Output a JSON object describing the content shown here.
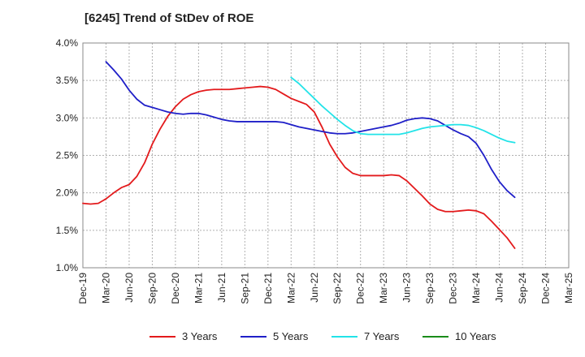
{
  "chart_data": {
    "type": "line",
    "title": "[6245]  Trend of StDev of ROE",
    "xlabel": "",
    "ylabel": "",
    "ylim": [
      1.0,
      4.0
    ],
    "yticks": [
      "1.0%",
      "1.5%",
      "2.0%",
      "2.5%",
      "3.0%",
      "3.5%",
      "4.0%"
    ],
    "ytick_values": [
      1.0,
      1.5,
      2.0,
      2.5,
      3.0,
      3.5,
      4.0
    ],
    "xticks": [
      "Dec-19",
      "Mar-20",
      "Jun-20",
      "Sep-20",
      "Dec-20",
      "Mar-21",
      "Jun-21",
      "Sep-21",
      "Dec-21",
      "Mar-22",
      "Jun-22",
      "Sep-22",
      "Dec-22",
      "Mar-23",
      "Jun-23",
      "Sep-23",
      "Dec-23",
      "Mar-24",
      "Jun-24",
      "Sep-24",
      "Dec-24",
      "Mar-25"
    ],
    "grid": true,
    "legend_position": "bottom",
    "series": [
      {
        "name": "3 Years",
        "color": "#e31a1c",
        "points": [
          [
            0,
            1.86
          ],
          [
            1,
            1.85
          ],
          [
            2,
            1.86
          ],
          [
            3,
            1.92
          ],
          [
            4,
            2.0
          ],
          [
            5,
            2.07
          ],
          [
            6,
            2.11
          ],
          [
            7,
            2.22
          ],
          [
            8,
            2.4
          ],
          [
            9,
            2.65
          ],
          [
            10,
            2.85
          ],
          [
            11,
            3.02
          ],
          [
            12,
            3.15
          ],
          [
            13,
            3.25
          ],
          [
            14,
            3.31
          ],
          [
            15,
            3.35
          ],
          [
            16,
            3.37
          ],
          [
            17,
            3.38
          ],
          [
            18,
            3.38
          ],
          [
            19,
            3.38
          ],
          [
            20,
            3.39
          ],
          [
            21,
            3.4
          ],
          [
            22,
            3.41
          ],
          [
            23,
            3.42
          ],
          [
            24,
            3.41
          ],
          [
            25,
            3.38
          ],
          [
            26,
            3.32
          ],
          [
            27,
            3.26
          ],
          [
            28,
            3.22
          ],
          [
            29,
            3.18
          ],
          [
            30,
            3.08
          ],
          [
            31,
            2.88
          ],
          [
            32,
            2.65
          ],
          [
            33,
            2.48
          ],
          [
            34,
            2.34
          ],
          [
            35,
            2.26
          ],
          [
            36,
            2.23
          ],
          [
            37,
            2.23
          ],
          [
            38,
            2.23
          ],
          [
            39,
            2.23
          ],
          [
            40,
            2.24
          ],
          [
            41,
            2.23
          ],
          [
            42,
            2.16
          ],
          [
            43,
            2.06
          ],
          [
            44,
            1.96
          ],
          [
            45,
            1.85
          ],
          [
            46,
            1.78
          ],
          [
            47,
            1.75
          ],
          [
            48,
            1.75
          ],
          [
            49,
            1.76
          ],
          [
            50,
            1.77
          ],
          [
            51,
            1.76
          ],
          [
            52,
            1.72
          ],
          [
            53,
            1.62
          ],
          [
            54,
            1.51
          ],
          [
            55,
            1.4
          ],
          [
            56,
            1.26
          ]
        ]
      },
      {
        "name": "5 Years",
        "color": "#1f1fc8",
        "points": [
          [
            3,
            3.75
          ],
          [
            4,
            3.64
          ],
          [
            5,
            3.52
          ],
          [
            6,
            3.37
          ],
          [
            7,
            3.25
          ],
          [
            8,
            3.17
          ],
          [
            9,
            3.14
          ],
          [
            10,
            3.11
          ],
          [
            11,
            3.08
          ],
          [
            12,
            3.06
          ],
          [
            13,
            3.05
          ],
          [
            14,
            3.06
          ],
          [
            15,
            3.06
          ],
          [
            16,
            3.04
          ],
          [
            17,
            3.01
          ],
          [
            18,
            2.98
          ],
          [
            19,
            2.96
          ],
          [
            20,
            2.95
          ],
          [
            21,
            2.95
          ],
          [
            22,
            2.95
          ],
          [
            23,
            2.95
          ],
          [
            24,
            2.95
          ],
          [
            25,
            2.95
          ],
          [
            26,
            2.94
          ],
          [
            27,
            2.91
          ],
          [
            28,
            2.88
          ],
          [
            29,
            2.86
          ],
          [
            30,
            2.84
          ],
          [
            31,
            2.82
          ],
          [
            32,
            2.8
          ],
          [
            33,
            2.79
          ],
          [
            34,
            2.79
          ],
          [
            35,
            2.8
          ],
          [
            36,
            2.82
          ],
          [
            37,
            2.84
          ],
          [
            38,
            2.86
          ],
          [
            39,
            2.88
          ],
          [
            40,
            2.9
          ],
          [
            41,
            2.93
          ],
          [
            42,
            2.97
          ],
          [
            43,
            2.99
          ],
          [
            44,
            3.0
          ],
          [
            45,
            2.99
          ],
          [
            46,
            2.96
          ],
          [
            47,
            2.9
          ],
          [
            48,
            2.84
          ],
          [
            49,
            2.79
          ],
          [
            50,
            2.75
          ],
          [
            51,
            2.66
          ],
          [
            52,
            2.5
          ],
          [
            53,
            2.31
          ],
          [
            54,
            2.15
          ],
          [
            55,
            2.03
          ],
          [
            56,
            1.94
          ]
        ]
      },
      {
        "name": "7 Years",
        "color": "#22e3e8",
        "points": [
          [
            27,
            3.54
          ],
          [
            28,
            3.46
          ],
          [
            29,
            3.36
          ],
          [
            30,
            3.26
          ],
          [
            31,
            3.16
          ],
          [
            32,
            3.07
          ],
          [
            33,
            2.98
          ],
          [
            34,
            2.9
          ],
          [
            35,
            2.83
          ],
          [
            36,
            2.79
          ],
          [
            37,
            2.78
          ],
          [
            38,
            2.78
          ],
          [
            39,
            2.78
          ],
          [
            40,
            2.78
          ],
          [
            41,
            2.78
          ],
          [
            42,
            2.8
          ],
          [
            43,
            2.83
          ],
          [
            44,
            2.86
          ],
          [
            45,
            2.88
          ],
          [
            46,
            2.89
          ],
          [
            47,
            2.9
          ],
          [
            48,
            2.91
          ],
          [
            49,
            2.91
          ],
          [
            50,
            2.9
          ],
          [
            51,
            2.87
          ],
          [
            52,
            2.83
          ],
          [
            53,
            2.78
          ],
          [
            54,
            2.73
          ],
          [
            55,
            2.69
          ],
          [
            56,
            2.67
          ]
        ]
      },
      {
        "name": "10 Years",
        "color": "#1a8c1a",
        "points": []
      }
    ]
  }
}
